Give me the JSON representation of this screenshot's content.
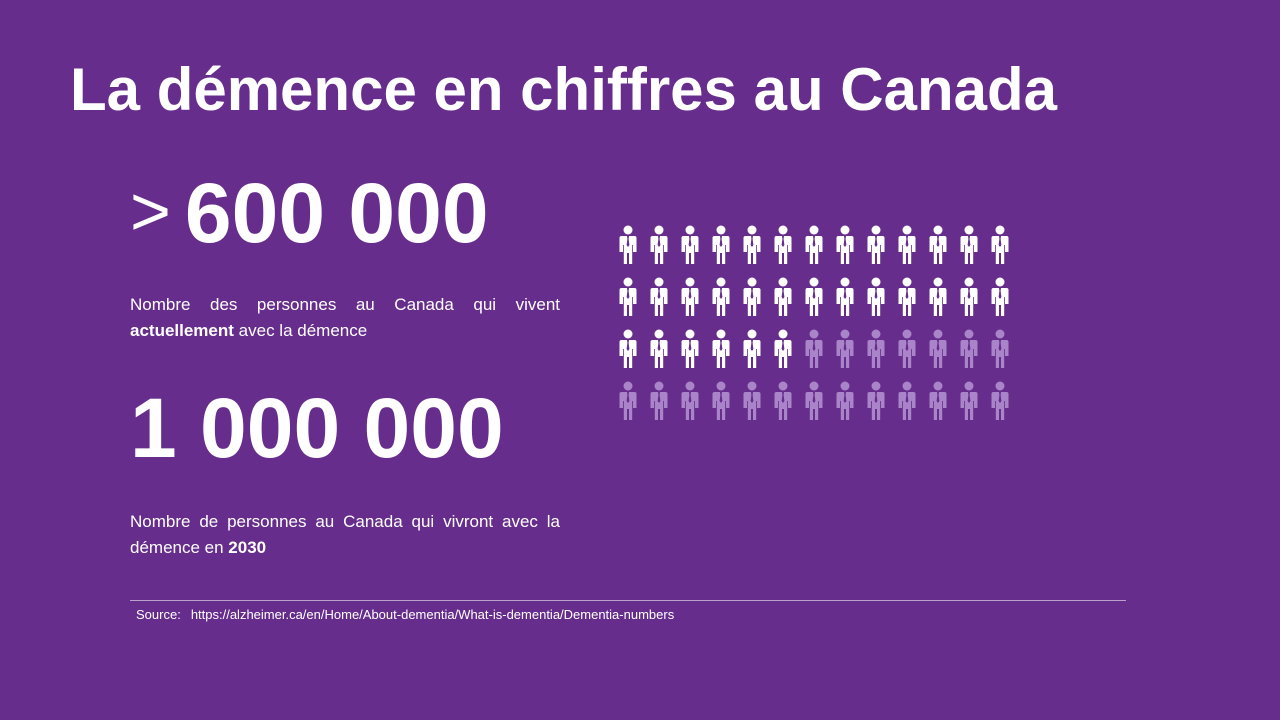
{
  "title": "La démence en chiffres au Canada",
  "stat_current": {
    "prefix": ">",
    "value": "600 000",
    "description_pre": "Nombre des personnes au Canada qui vivent ",
    "description_bold": "actuellement",
    "description_post": " avec la démence"
  },
  "stat_future": {
    "value": "1 000 000",
    "description_pre": "Nombre de personnes au Canada qui vivront avec la démence en ",
    "description_bold": "2030"
  },
  "source": {
    "label": "Source:",
    "url": "https://alzheimer.ca/en/Home/About-dementia/What-is-dementia/Dementia-numbers"
  },
  "pictogram": {
    "icon": "person-icon",
    "total": 52,
    "filled": 32,
    "per_row": 13
  },
  "colors": {
    "background": "#662d8c",
    "text": "#ffffff",
    "icon_filled": "#ffffff",
    "icon_faded": "#a984c8",
    "rule": "#b9a3cc"
  }
}
